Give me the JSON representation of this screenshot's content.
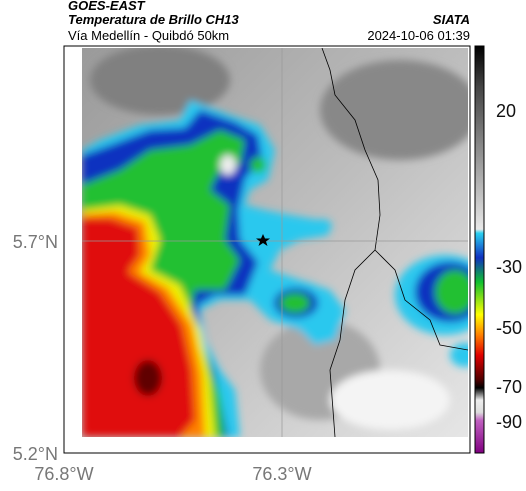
{
  "header": {
    "product": "GOES-EAST",
    "title": "Temperatura de Brillo CH13",
    "subtitle": "Vía Medellín - Quibdó 50km",
    "source": "SIATA",
    "timestamp": "2024-10-06 01:39"
  },
  "map": {
    "lat_ticks": [
      "5.7°N",
      "5.2°N"
    ],
    "lon_ticks": [
      "76.8°W",
      "76.3°W"
    ],
    "colorbar": {
      "ticks": [
        "20",
        "-30",
        "-50",
        "-70",
        "-90"
      ]
    }
  }
}
